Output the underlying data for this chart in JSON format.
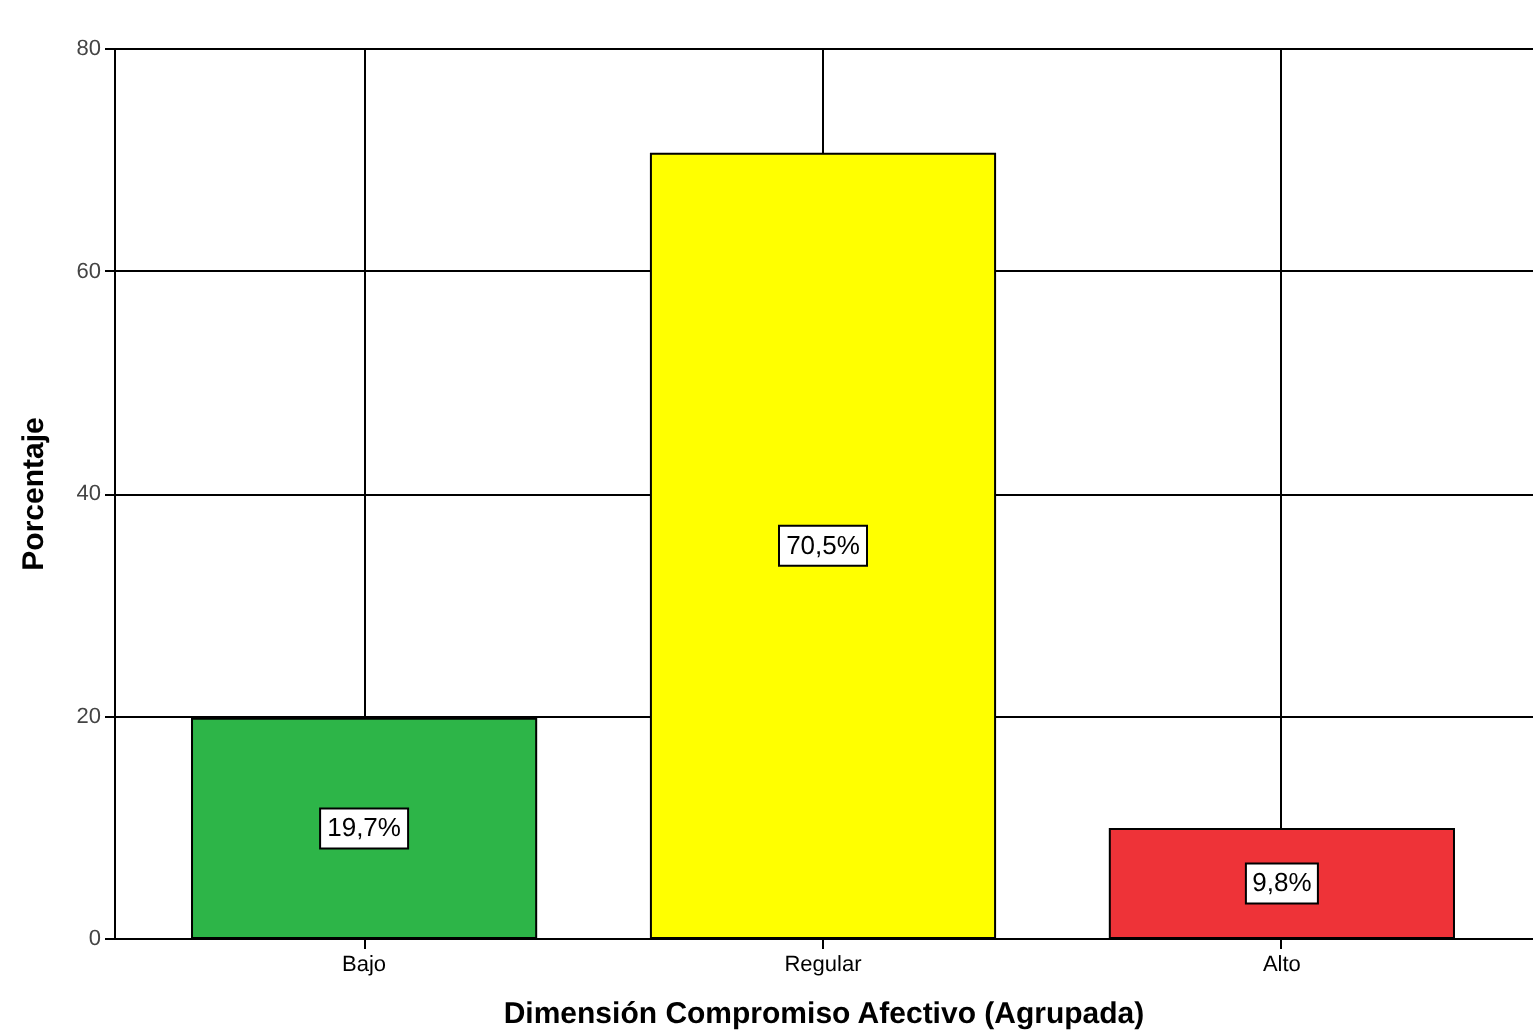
{
  "chart_data": {
    "type": "bar",
    "xlabel": "Dimensión Compromiso Afectivo (Agrupada)",
    "ylabel": "Porcentaje",
    "categories": [
      "Bajo",
      "Regular",
      "Alto"
    ],
    "values": [
      19.7,
      70.5,
      9.8
    ],
    "colors": [
      "#2db548",
      "#ffff00",
      "#ee3338"
    ],
    "value_labels": [
      "19,7%",
      "70,5%",
      "9,8%"
    ],
    "ylim": [
      0,
      80
    ],
    "yticks": [
      0,
      20,
      40,
      60,
      80
    ],
    "grid": true,
    "legend": false
  }
}
